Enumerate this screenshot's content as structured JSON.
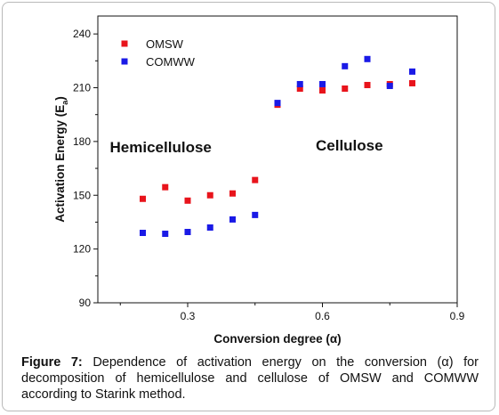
{
  "chart_data": {
    "type": "scatter",
    "xlabel": "Conversion degree (α)",
    "ylabel": "Activation Energy (E",
    "ylabel_sub": "a",
    "ylabel_end": ")",
    "xlim": [
      0.1,
      0.9
    ],
    "ylim": [
      90,
      250
    ],
    "xticks": [
      0.3,
      0.6,
      0.9
    ],
    "xtick_labels": [
      "0.3",
      "0.6",
      "0.9"
    ],
    "yticks": [
      90,
      120,
      150,
      180,
      210,
      240
    ],
    "ytick_labels": [
      "90",
      "120",
      "150",
      "180",
      "210",
      "240"
    ],
    "grid": false,
    "legend_position": "top-left",
    "annotations": [
      {
        "text": "Hemicellulose",
        "x": 0.24,
        "y": 174
      },
      {
        "text": "Cellulose",
        "x": 0.66,
        "y": 175
      }
    ],
    "series": [
      {
        "name": "OMSW",
        "color": "#e8141c",
        "x": [
          0.2,
          0.25,
          0.3,
          0.35,
          0.4,
          0.45,
          0.5,
          0.55,
          0.6,
          0.65,
          0.7,
          0.75,
          0.8
        ],
        "y": [
          148,
          154.5,
          147,
          150,
          151,
          158.5,
          200.5,
          209.5,
          208.5,
          209.5,
          211.5,
          212,
          212.5
        ]
      },
      {
        "name": "COMWW",
        "color": "#1a1ae6",
        "x": [
          0.2,
          0.25,
          0.3,
          0.35,
          0.4,
          0.45,
          0.5,
          0.55,
          0.6,
          0.65,
          0.7,
          0.75,
          0.8
        ],
        "y": [
          129,
          128.5,
          129.5,
          132,
          136.5,
          139,
          201.5,
          212,
          212,
          222,
          226,
          211,
          219
        ]
      }
    ]
  },
  "caption": {
    "label": "Figure 7:",
    "text": " Dependence of activation energy on the conversion (α) for decomposition of hemicellulose and cellulose of OMSW and COMWW according to Starink method."
  }
}
